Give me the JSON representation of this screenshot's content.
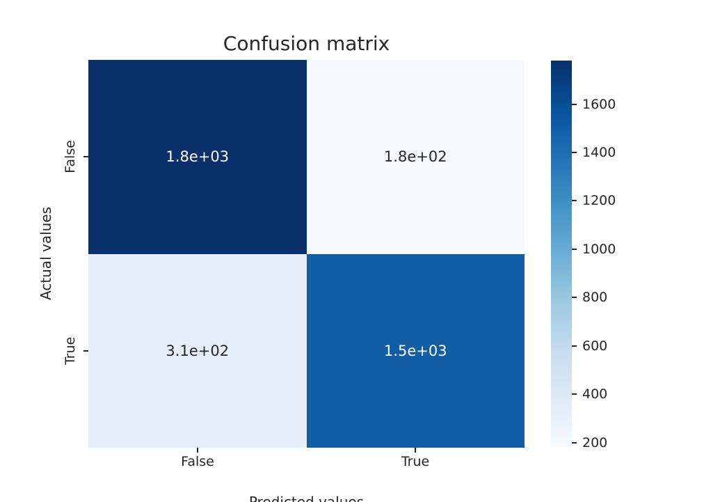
{
  "chart_data": {
    "type": "heatmap",
    "title": "Confusion matrix",
    "xlabel": "Predicted values",
    "ylabel": "Actual values",
    "x_categories": [
      "False",
      "True"
    ],
    "y_categories": [
      "False",
      "True"
    ],
    "cells": [
      {
        "row": "False",
        "col": "False",
        "label": "1.8e+03",
        "value": 1800,
        "bg": "#09306b",
        "text_color": "#ffffff"
      },
      {
        "row": "False",
        "col": "True",
        "label": "1.8e+02",
        "value": 180,
        "bg": "#f6fafe",
        "text_color": "#262626"
      },
      {
        "row": "True",
        "col": "False",
        "label": "3.1e+02",
        "value": 310,
        "bg": "#e6eff8",
        "text_color": "#262626"
      },
      {
        "row": "True",
        "col": "True",
        "label": "1.5e+03",
        "value": 1500,
        "bg": "#125ea6",
        "text_color": "#ffffff"
      }
    ],
    "colorbar": {
      "colormap": "Blues",
      "vmin": 179,
      "vmax": 1780,
      "ticks": [
        1600,
        1400,
        1200,
        1000,
        800,
        600,
        400,
        200
      ]
    },
    "legend": "none",
    "grid": "off",
    "text_color": "#262626"
  }
}
